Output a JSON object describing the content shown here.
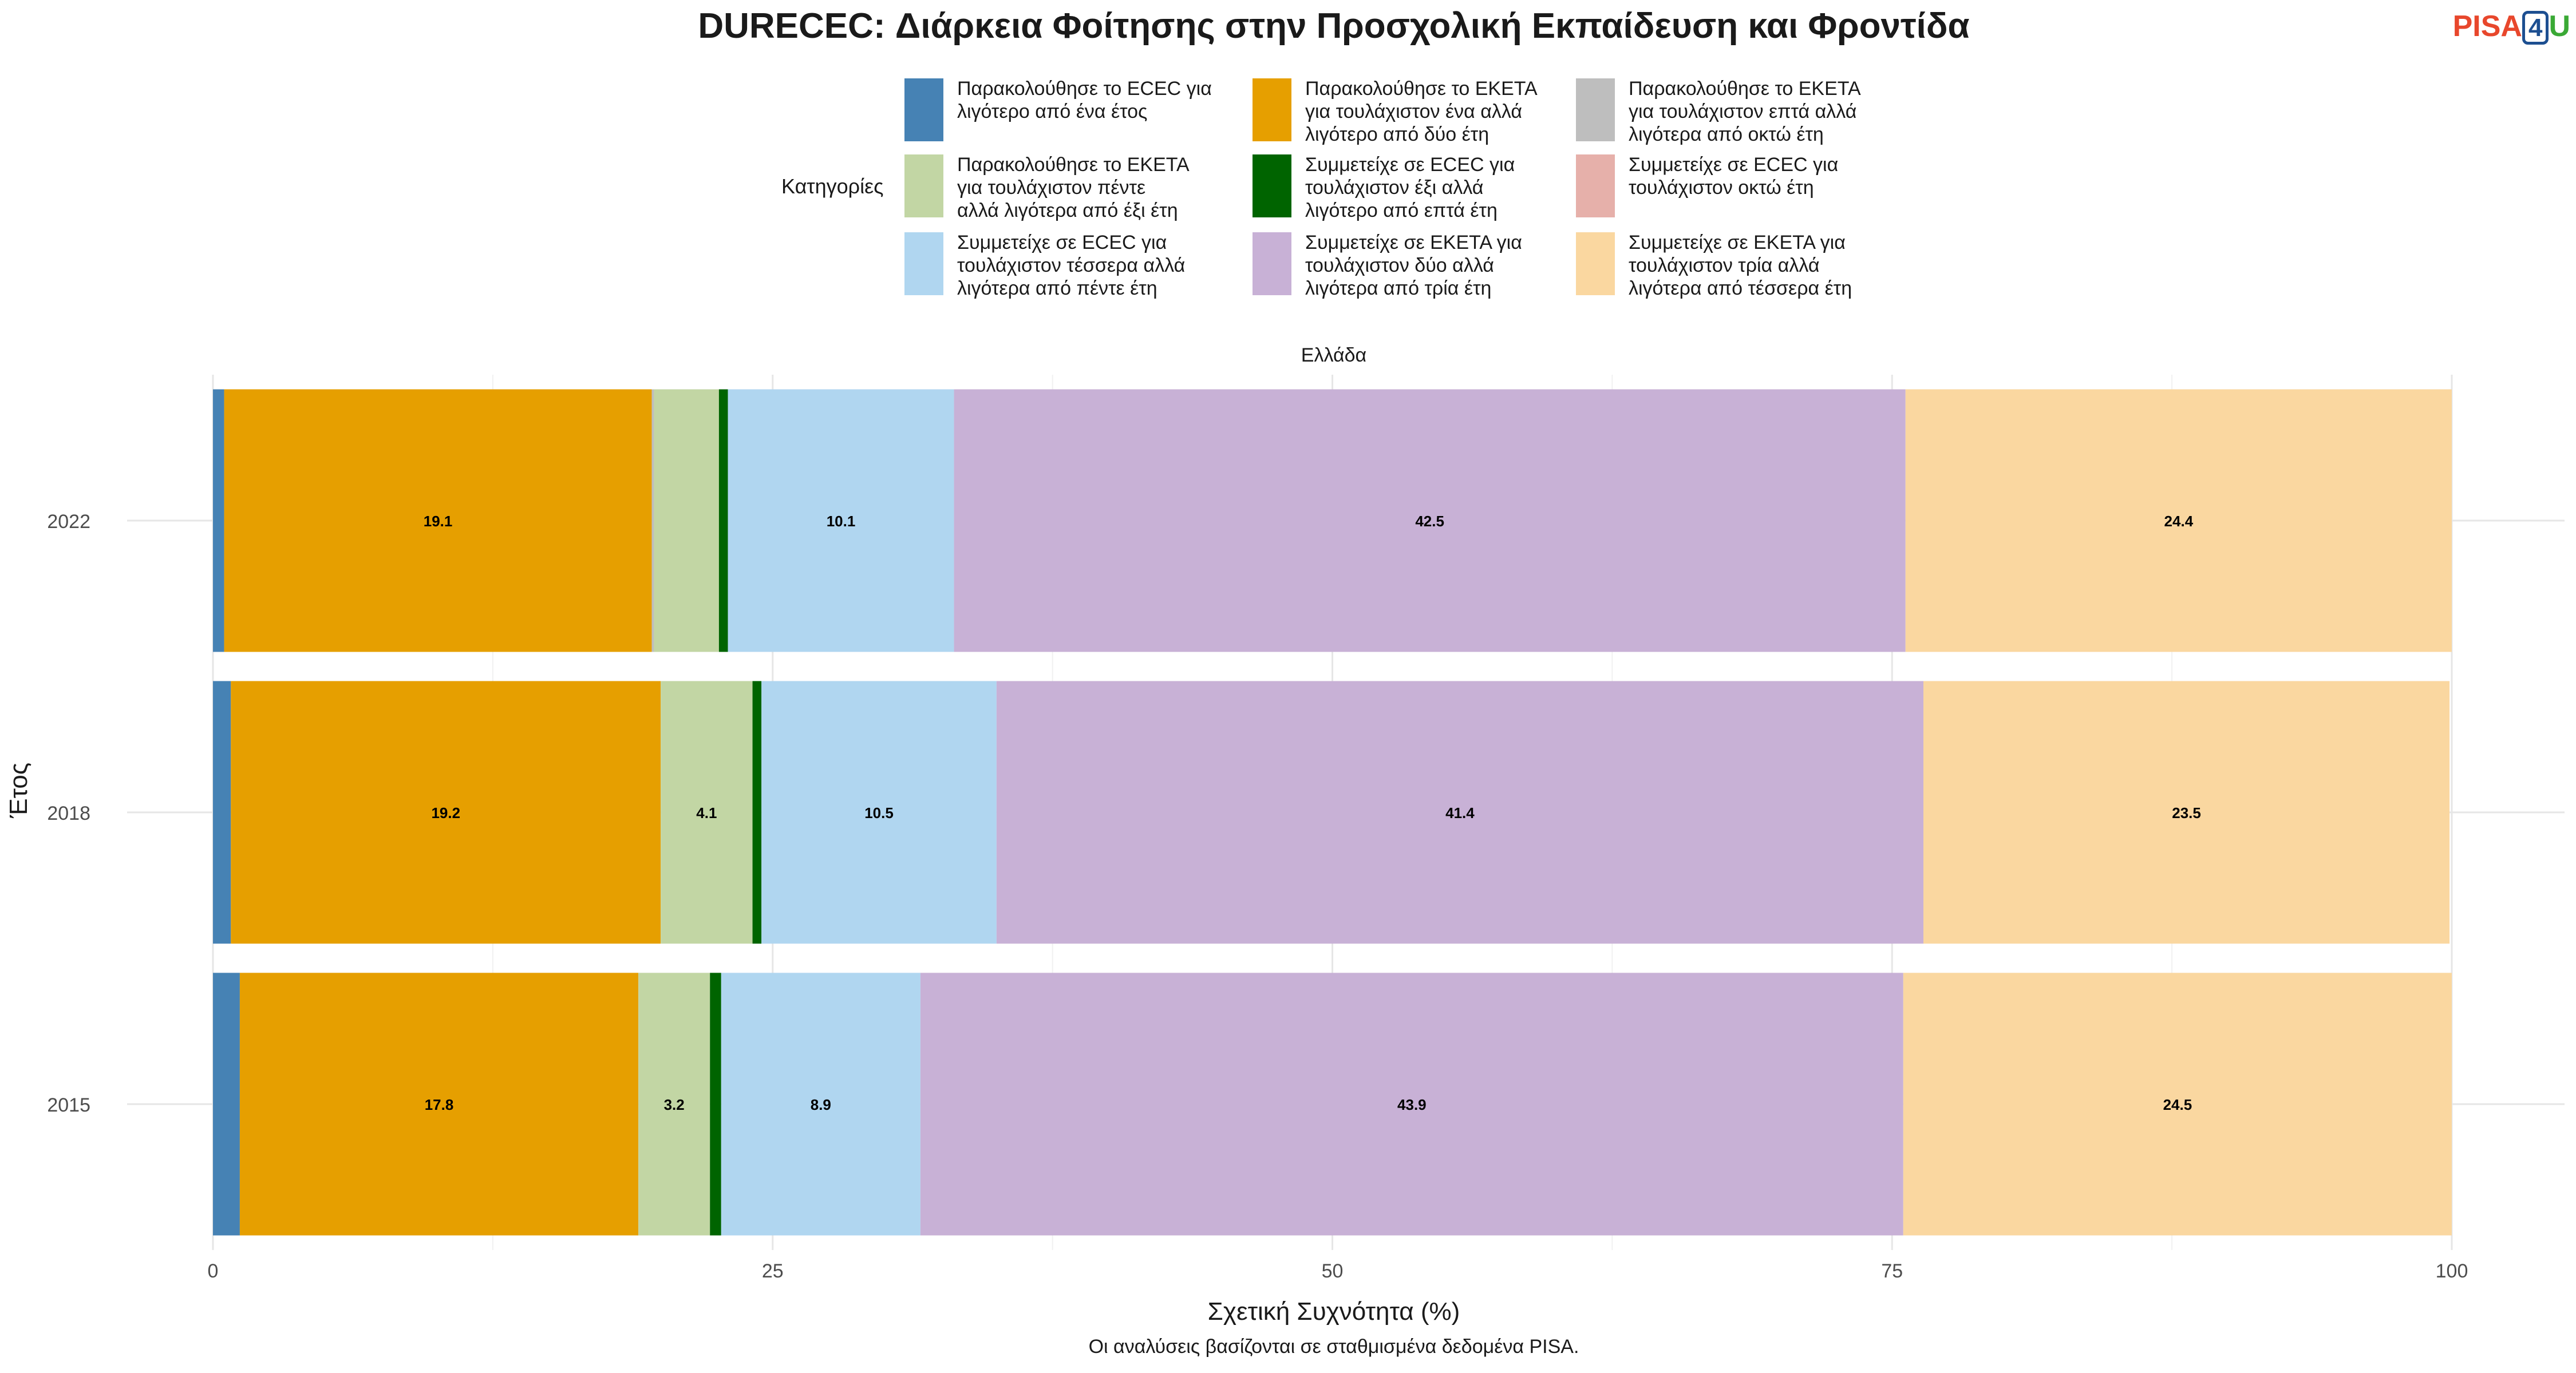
{
  "title": "DURECEC: Διάρκεια Φοίτησης στην Προσχολική Εκπαίδευση και Φροντίδα",
  "logo": {
    "p": "PISA",
    "four": "4",
    "u": "U"
  },
  "chart_data": {
    "type": "bar",
    "orientation": "horizontal",
    "stacked": true,
    "facet": "Ελλάδα",
    "categories": [
      "2022",
      "2018",
      "2015"
    ],
    "xlabel": "Σχετική Συχνότητα (%)",
    "ylabel": "Έτος",
    "xlim": [
      0,
      100
    ],
    "xticks": [
      0,
      25,
      50,
      75,
      100
    ],
    "grid": true,
    "legend_title": "Κατηγορίες",
    "legend_position": "top",
    "caption": "Οι αναλύσεις βασίζονται σε σταθμισμένα δεδομένα PISA.",
    "series": [
      {
        "name": "Παρακολούθησε το ECEC για λιγότερο από ένα έτος",
        "color": "#4682b4",
        "values": [
          0.5,
          0.8,
          1.2
        ],
        "labels": [
          "",
          "",
          ""
        ]
      },
      {
        "name": "Παρακολούθησε το ΕΚΕΤΑ για τουλάχιστον ένα αλλά λιγότερο από δύο έτη",
        "color": "#e69f00",
        "values": [
          19.1,
          19.2,
          17.8
        ],
        "labels": [
          "19.1",
          "19.2",
          "17.8"
        ]
      },
      {
        "name": "Παρακολούθησε το ΕΚΕΤΑ για τουλάχιστον επτά αλλά λιγότερα από οκτώ έτη",
        "color": "#bebebe",
        "values": [
          0.1,
          0,
          0
        ],
        "labels": [
          "",
          "",
          ""
        ]
      },
      {
        "name": "Παρακολούθησε το ΕΚΕΤΑ για τουλάχιστον πέντε αλλά λιγότερα από έξι έτη",
        "color": "#c2d6a4",
        "values": [
          2.9,
          4.1,
          3.2
        ],
        "labels": [
          "",
          "4.1",
          "3.2"
        ]
      },
      {
        "name": "Συμμετείχε σε ECEC για τουλάχιστον έξι αλλά λιγότερο από επτά έτη",
        "color": "#006400",
        "values": [
          0.4,
          0.4,
          0.5
        ],
        "labels": [
          "",
          "",
          ""
        ]
      },
      {
        "name": "Συμμετείχε σε ECEC για τουλάχιστον οκτώ έτη",
        "color": "#e6b0aa",
        "values": [
          0,
          0,
          0
        ],
        "labels": [
          "",
          "",
          ""
        ]
      },
      {
        "name": "Συμμετείχε σε ECEC για τουλάχιστον τέσσερα αλλά λιγότερα από πέντε έτη",
        "color": "#b0d6f0",
        "values": [
          10.1,
          10.5,
          8.9
        ],
        "labels": [
          "10.1",
          "10.5",
          "8.9"
        ]
      },
      {
        "name": "Συμμετείχε σε ΕΚΕΤΑ για τουλάχιστον δύο αλλά λιγότερα από τρία έτη",
        "color": "#c8b1d6",
        "values": [
          42.5,
          41.4,
          43.9
        ],
        "labels": [
          "42.5",
          "41.4",
          "43.9"
        ]
      },
      {
        "name": "Συμμετείχε σε ΕΚΕΤΑ για τουλάχιστον τρία αλλά λιγότερα από τέσσερα έτη",
        "color": "#fad7a0",
        "values": [
          24.4,
          23.5,
          24.5
        ],
        "labels": [
          "24.4",
          "23.5",
          "24.5"
        ]
      }
    ],
    "legend_order": [
      [
        "Παρακολούθησε το ECEC για λιγότερο από ένα έτος",
        "Παρακολούθησε το ΕΚΕΤΑ για τουλάχιστον πέντε αλλά λιγότερα από έξι έτη",
        "Συμμετείχε σε ECEC για τουλάχιστον τέσσερα αλλά λιγότερα από πέντε έτη"
      ],
      [
        "Παρακολούθησε το ΕΚΕΤΑ για τουλάχιστον ένα αλλά λιγότερο από δύο έτη",
        "Συμμετείχε σε ECEC για τουλάχιστον έξι αλλά λιγότερο από επτά έτη",
        "Συμμετείχε σε ΕΚΕΤΑ για τουλάχιστον δύο αλλά λιγότερα από τρία έτη"
      ],
      [
        "Παρακολούθησε το ΕΚΕΤΑ για τουλάχιστον επτά αλλά λιγότερα από οκτώ έτη",
        "Συμμετείχε σε ECEC για τουλάχιστον οκτώ έτη",
        "Συμμετείχε σε ΕΚΕΤΑ για τουλάχιστον τρία αλλά λιγότερα από τέσσερα έτη"
      ]
    ],
    "legend_labels": {
      "Παρακολούθησε το ECEC για λιγότερο από ένα έτος": [
        "Παρακολούθησε το ECEC για",
        "λιγότερο από ένα έτος"
      ],
      "Παρακολούθησε το ΕΚΕΤΑ για τουλάχιστον πέντε αλλά λιγότερα από έξι έτη": [
        "Παρακολούθησε το ΕΚΕΤΑ",
        "για τουλάχιστον πέντε",
        "αλλά λιγότερα από έξι έτη"
      ],
      "Συμμετείχε σε ECEC για τουλάχιστον τέσσερα αλλά λιγότερα από πέντε έτη": [
        "Συμμετείχε σε ECEC για",
        "τουλάχιστον τέσσερα αλλά",
        "λιγότερα από πέντε έτη"
      ],
      "Παρακολούθησε το ΕΚΕΤΑ για τουλάχιστον ένα αλλά λιγότερο από δύο έτη": [
        "Παρακολούθησε το ΕΚΕΤΑ",
        "για τουλάχιστον ένα αλλά",
        "λιγότερο από δύο έτη"
      ],
      "Συμμετείχε σε ECEC για τουλάχιστον έξι αλλά λιγότερο από επτά έτη": [
        "Συμμετείχε σε ECEC για",
        "τουλάχιστον έξι αλλά",
        "λιγότερο από επτά έτη"
      ],
      "Συμμετείχε σε ΕΚΕΤΑ για τουλάχιστον δύο αλλά λιγότερα από τρία έτη": [
        "Συμμετείχε σε ΕΚΕΤΑ για",
        "τουλάχιστον δύο αλλά",
        "λιγότερα από τρία έτη"
      ],
      "Παρακολούθησε το ΕΚΕΤΑ για τουλάχιστον επτά αλλά λιγότερα από οκτώ έτη": [
        "Παρακολούθησε το ΕΚΕΤΑ",
        "για τουλάχιστον επτά αλλά",
        "λιγότερα από οκτώ έτη"
      ],
      "Συμμετείχε σε ECEC για τουλάχιστον οκτώ έτη": [
        "Συμμετείχε σε ECEC για",
        "τουλάχιστον οκτώ έτη"
      ],
      "Συμμετείχε σε ΕΚΕΤΑ για τουλάχιστον τρία αλλά λιγότερα από τέσσερα έτη": [
        "Συμμετείχε σε ΕΚΕΤΑ για",
        "τουλάχιστον τρία αλλά",
        "λιγότερα από τέσσερα έτη"
      ]
    }
  }
}
